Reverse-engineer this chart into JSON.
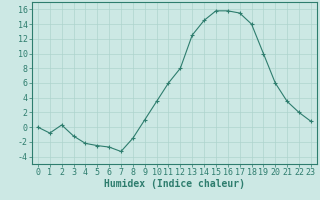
{
  "x": [
    0,
    1,
    2,
    3,
    4,
    5,
    6,
    7,
    8,
    9,
    10,
    11,
    12,
    13,
    14,
    15,
    16,
    17,
    18,
    19,
    20,
    21,
    22,
    23
  ],
  "y": [
    0,
    -0.8,
    0.3,
    -1.2,
    -2.2,
    -2.5,
    -2.7,
    -3.3,
    -1.5,
    1.0,
    3.5,
    6.0,
    8.0,
    12.5,
    14.5,
    15.8,
    15.8,
    15.5,
    14.0,
    10.0,
    6.0,
    3.5,
    2.0,
    0.8
  ],
  "line_color": "#2e7d6e",
  "marker": "+",
  "bg_color": "#cce8e4",
  "grid_color": "#aed4ce",
  "axis_color": "#2e7d6e",
  "spine_color": "#2e7d6e",
  "xlabel": "Humidex (Indice chaleur)",
  "xlim": [
    -0.5,
    23.5
  ],
  "ylim": [
    -5,
    17
  ],
  "yticks": [
    -4,
    -2,
    0,
    2,
    4,
    6,
    8,
    10,
    12,
    14,
    16
  ],
  "xticks": [
    0,
    1,
    2,
    3,
    4,
    5,
    6,
    7,
    8,
    9,
    10,
    11,
    12,
    13,
    14,
    15,
    16,
    17,
    18,
    19,
    20,
    21,
    22,
    23
  ],
  "xlabel_fontsize": 7,
  "tick_fontsize": 6,
  "font_family": "monospace",
  "linewidth": 0.8,
  "markersize": 3,
  "markeredgewidth": 0.8
}
